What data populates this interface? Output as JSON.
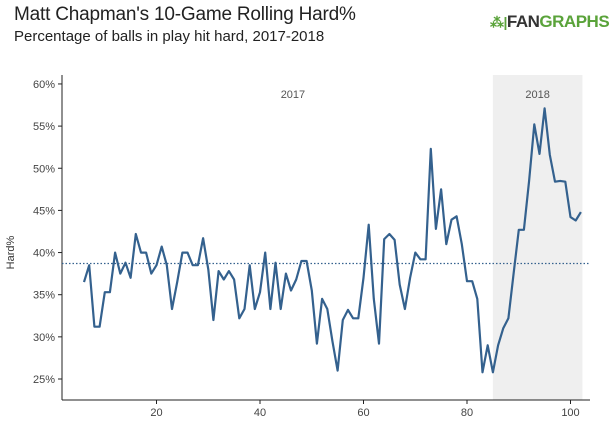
{
  "header": {
    "title": "Matt Chapman's 10-Game Rolling Hard%",
    "subtitle": "Percentage of balls in play hit hard, 2017-2018",
    "logo_fan": "FAN",
    "logo_graphs": "GRAPHS"
  },
  "colors": {
    "line": "#34618e",
    "shade": "#efefef",
    "average": "#34618e"
  },
  "chart_data": {
    "type": "line",
    "title": "Matt Chapman's 10-Game Rolling Hard%",
    "xlabel": "",
    "ylabel": "Hard%",
    "xlim": [
      0,
      103
    ],
    "ylim": [
      24,
      60
    ],
    "xticks": [
      20,
      40,
      60,
      80,
      100
    ],
    "yticks": [
      25,
      30,
      35,
      40,
      45,
      50,
      55,
      60
    ],
    "ytick_labels": [
      "25%",
      "30%",
      "35%",
      "40%",
      "45%",
      "50%",
      "55%",
      "60%"
    ],
    "grid": false,
    "x_start": 6,
    "values": [
      36.5,
      38.5,
      31.2,
      31.2,
      35.3,
      35.3,
      40,
      37.5,
      38.8,
      37,
      42.2,
      40,
      40,
      37.5,
      38.5,
      40.7,
      38.5,
      33.3,
      36.5,
      40,
      40,
      38.5,
      38.5,
      41.7,
      38,
      32,
      37.8,
      36.8,
      37.8,
      36.8,
      32.2,
      33.3,
      38.5,
      33.3,
      35.3,
      40,
      33.3,
      38.8,
      33.3,
      37.5,
      35.5,
      36.8,
      39,
      39,
      35.5,
      29.2,
      34.5,
      33.3,
      29.5,
      26,
      32,
      33.2,
      32.2,
      32.2,
      37,
      43.3,
      34.5,
      29.2,
      41.6,
      42.2,
      41.5,
      36.2,
      33.3,
      37,
      40,
      39.2,
      39.2,
      52.3,
      42.8,
      47.5,
      41,
      43.9,
      44.3,
      41,
      36.6,
      36.6,
      34.5,
      25.8,
      29,
      25.8,
      29,
      31,
      32.2,
      37.5,
      42.7,
      42.7,
      48.5,
      55.2,
      51.7,
      57.1,
      51.6,
      48.4,
      48.5,
      48.4,
      44.2,
      43.8,
      44.8
    ],
    "average": 38.7,
    "regions": [
      {
        "label": "2017",
        "from": 0,
        "to": 85,
        "shaded": false
      },
      {
        "label": "2018",
        "from": 85,
        "to": 102.3,
        "shaded": true
      }
    ]
  }
}
